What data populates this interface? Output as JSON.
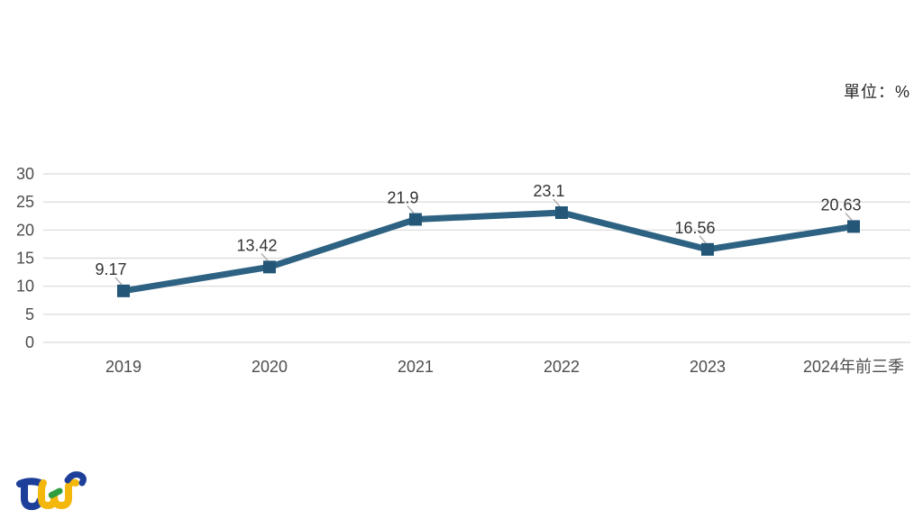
{
  "unit_label": "單位：%",
  "logo": {
    "name": "TEJ",
    "colors": {
      "blue": "#1d3f99",
      "yellow": "#f4b80c",
      "green": "#2f9e3f"
    }
  },
  "colors": {
    "background": "#ffffff",
    "line": "#2e6282",
    "marker": "#235677",
    "gridline": "#d9d9d9",
    "tick_text": "#4d4d4d",
    "data_label_text": "#333333",
    "leader_line": "#b0b0b0"
  },
  "chart_data": {
    "type": "line",
    "title": "",
    "unit": "%",
    "categories": [
      "2019",
      "2020",
      "2021",
      "2022",
      "2023",
      "2024年前三季"
    ],
    "series": [
      {
        "name": "percentage",
        "values": [
          9.17,
          13.42,
          21.9,
          23.1,
          16.56,
          20.63
        ]
      }
    ],
    "data_labels": [
      "9.17",
      "13.42",
      "21.9",
      "23.1",
      "16.56",
      "20.63"
    ],
    "ylim": [
      0,
      30
    ],
    "yticks": [
      0,
      5,
      10,
      15,
      20,
      25,
      30
    ],
    "grid": true,
    "legend": "none",
    "marker": "square"
  }
}
